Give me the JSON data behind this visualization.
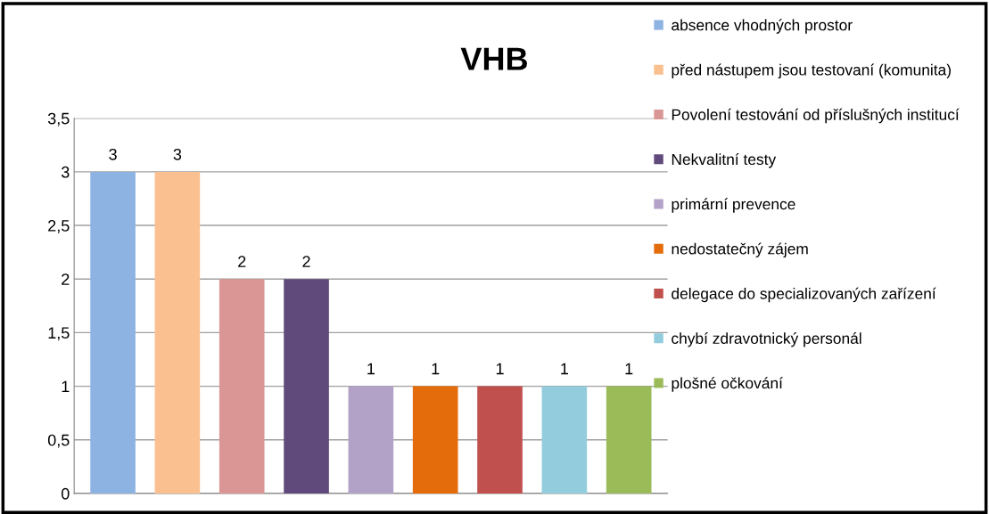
{
  "chart_data": {
    "type": "bar",
    "title": "VHB",
    "categories": [
      null,
      null,
      null,
      null,
      null,
      null,
      null,
      null,
      null
    ],
    "series": [
      {
        "name": "absence vhodných prostor",
        "color": "#8db3e2",
        "values": [
          3,
          null,
          null,
          null,
          null,
          null,
          null,
          null,
          null
        ]
      },
      {
        "name": "před nástupem jsou testovaní (komunita)",
        "color": "#fac08f",
        "values": [
          null,
          3,
          null,
          null,
          null,
          null,
          null,
          null,
          null
        ]
      },
      {
        "name": "Povolení testování od příslušných institucí",
        "color": "#d99694",
        "values": [
          null,
          null,
          2,
          null,
          null,
          null,
          null,
          null,
          null
        ]
      },
      {
        "name": "Nekvalitní testy",
        "color": "#604a7b",
        "values": [
          null,
          null,
          null,
          2,
          null,
          null,
          null,
          null,
          null
        ]
      },
      {
        "name": "primární prevence",
        "color": "#b3a2c7",
        "values": [
          null,
          null,
          null,
          null,
          1,
          null,
          null,
          null,
          null
        ]
      },
      {
        "name": "nedostatečný zájem",
        "color": "#e46c0a",
        "values": [
          null,
          null,
          null,
          null,
          null,
          1,
          null,
          null,
          null
        ]
      },
      {
        "name": "delegace do specializovaných zařízení",
        "color": "#c0504d",
        "values": [
          null,
          null,
          null,
          null,
          null,
          null,
          1,
          null,
          null
        ]
      },
      {
        "name": "chybí zdravotnický personál",
        "color": "#93cddd",
        "values": [
          null,
          null,
          null,
          null,
          null,
          null,
          null,
          1,
          null
        ]
      },
      {
        "name": "plošné očkování",
        "color": "#9bbb59",
        "values": [
          null,
          null,
          null,
          null,
          null,
          null,
          null,
          null,
          1
        ]
      }
    ],
    "ylim": [
      0,
      3.5
    ],
    "yticks": [
      {
        "value": 0,
        "label": "0"
      },
      {
        "value": 0.5,
        "label": "0,5"
      },
      {
        "value": 1,
        "label": "1"
      },
      {
        "value": 1.5,
        "label": "1,5"
      },
      {
        "value": 2,
        "label": "2"
      },
      {
        "value": 2.5,
        "label": "2,5"
      },
      {
        "value": 3,
        "label": "3"
      },
      {
        "value": 3.5,
        "label": "3,5"
      }
    ],
    "grid": "y",
    "legend": "right",
    "data_labels": true
  }
}
